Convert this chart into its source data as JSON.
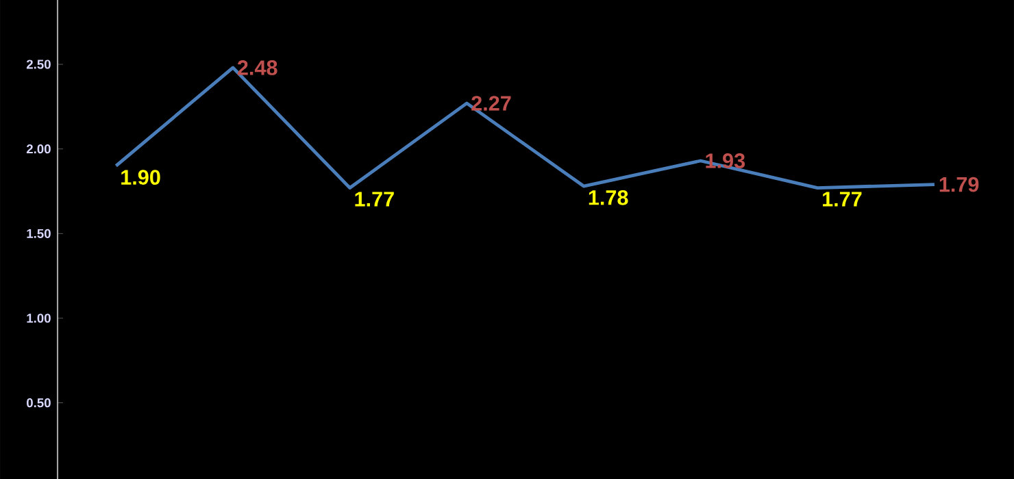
{
  "chart_data": {
    "type": "line",
    "categories": [
      null,
      null,
      null,
      null,
      null,
      null,
      null,
      null
    ],
    "series": [
      {
        "color": "#4a7ebb",
        "values": [
          1.9,
          2.48,
          1.77,
          2.27,
          1.78,
          1.93,
          1.77,
          1.79
        ],
        "value_labels": [
          "1.90",
          "2.48",
          "1.77",
          "2.27",
          "1.78",
          "1.93",
          "1.77",
          "1.79"
        ],
        "colors": [
          "#ffff00",
          "#c0504d",
          "#ffff00",
          "#c0504d",
          "#ffff00",
          "#c0504d",
          "#ffff00",
          "#c0504d"
        ]
      }
    ],
    "ylim": [
      0.05,
      2.88
    ],
    "yticks": [
      {
        "value": 0.5,
        "label": "0.50"
      },
      {
        "value": 1.0,
        "label": "1.00"
      },
      {
        "value": 1.5,
        "label": "1.50"
      },
      {
        "value": 2.0,
        "label": "2.00"
      },
      {
        "value": 2.5,
        "label": "2.50"
      }
    ],
    "tick_labels": "y",
    "marker": "none",
    "line_style": "solid"
  }
}
